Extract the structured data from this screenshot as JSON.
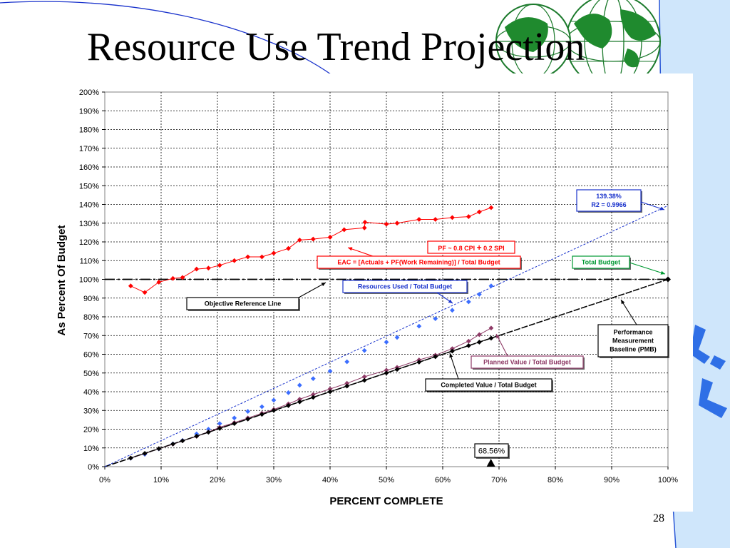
{
  "slide": {
    "title": "Resource Use Trend Projection",
    "page_number": "28",
    "decorations": [
      "globe-icon",
      "curve-line"
    ]
  },
  "colors": {
    "red": "#ff0000",
    "blue": "#3c6eff",
    "purple": "#8e3a66",
    "black": "#000000",
    "green": "#009933",
    "slide_blue": "#cfe6fb",
    "navy": "#1a33cc"
  },
  "chart_data": {
    "type": "scatter",
    "xlabel": "PERCENT COMPLETE",
    "ylabel": "As Percent Of Budget",
    "xlim": [
      0,
      100
    ],
    "ylim": [
      0,
      200
    ],
    "x_ticks": [
      0,
      10,
      20,
      30,
      40,
      50,
      60,
      70,
      80,
      90,
      100
    ],
    "y_ticks": [
      0,
      10,
      20,
      30,
      40,
      50,
      60,
      70,
      80,
      90,
      100,
      110,
      120,
      130,
      140,
      150,
      160,
      170,
      180,
      190,
      200
    ],
    "x_tick_labels": [
      "0%",
      "10%",
      "20%",
      "30%",
      "40%",
      "50%",
      "60%",
      "70%",
      "80%",
      "90%",
      "100%"
    ],
    "y_tick_labels": [
      "0%",
      "10%",
      "20%",
      "30%",
      "40%",
      "50%",
      "60%",
      "70%",
      "80%",
      "90%",
      "100%",
      "110%",
      "120%",
      "130%",
      "140%",
      "150%",
      "160%",
      "170%",
      "180%",
      "190%",
      "200%"
    ],
    "grid": true,
    "series": [
      {
        "key": "eac",
        "color": "#ff0000",
        "x": [
          4.6,
          7.1,
          9.6,
          12.1,
          13.8,
          16.3,
          18.4,
          20.4,
          23.0,
          25.4,
          27.9,
          30.0,
          32.6,
          34.6,
          37.0,
          40.0,
          42.5,
          46.1,
          46.2,
          50.0,
          51.9,
          55.8,
          58.7,
          61.7,
          64.6,
          66.5,
          68.6
        ],
        "y": [
          96.5,
          93,
          98.5,
          100.5,
          101,
          105.5,
          106,
          107.5,
          110,
          112,
          112,
          114,
          116.5,
          121,
          121.5,
          122.5,
          126.5,
          127.5,
          130.5,
          129.5,
          130,
          132,
          132,
          133,
          133.5,
          136,
          138.3
        ]
      },
      {
        "key": "resources",
        "color": "#3c6eff",
        "x": [
          4.6,
          7.1,
          9.6,
          12.1,
          13.8,
          16.3,
          18.4,
          20.4,
          23.0,
          25.4,
          27.9,
          30.0,
          32.6,
          34.6,
          37.0,
          40.0,
          43.0,
          46.1,
          50.0,
          51.9,
          55.8,
          58.7,
          61.7,
          64.6,
          66.5,
          68.6
        ],
        "y": [
          4.5,
          6.6,
          9.5,
          12.2,
          14,
          17.5,
          20,
          23,
          26,
          29.5,
          32,
          35.5,
          39.5,
          43.5,
          47,
          51,
          56,
          62,
          66.5,
          69,
          75,
          79,
          83.5,
          88,
          92,
          96.5
        ]
      },
      {
        "key": "planned",
        "color": "#8e3a66",
        "x": [
          4.6,
          7.1,
          9.6,
          12.1,
          13.8,
          16.3,
          18.4,
          20.4,
          23.0,
          25.4,
          27.9,
          30.0,
          32.6,
          34.6,
          37.0,
          40.0,
          43.0,
          46.1,
          50.0,
          51.9,
          55.8,
          58.7,
          61.7,
          64.6,
          66.5,
          68.6
        ],
        "y": [
          4.6,
          7,
          9.6,
          12,
          13.8,
          16.2,
          18.5,
          21,
          23.5,
          26,
          28.5,
          30.5,
          33.5,
          36,
          38.5,
          41.5,
          44.5,
          48,
          51.5,
          53,
          57,
          59.5,
          63,
          67,
          70.5,
          74
        ]
      },
      {
        "key": "completed",
        "color": "#000000",
        "x": [
          4.6,
          7.1,
          9.6,
          12.1,
          13.8,
          16.3,
          18.4,
          20.4,
          23.0,
          25.4,
          27.9,
          30.0,
          32.6,
          34.6,
          37.0,
          40.0,
          43.0,
          46.1,
          50.0,
          51.9,
          55.8,
          58.7,
          61.7,
          64.6,
          66.5,
          68.6
        ],
        "y": [
          4.6,
          7.1,
          9.6,
          12.1,
          13.8,
          16.3,
          18.4,
          20.4,
          23,
          25.4,
          27.9,
          30,
          32.6,
          34.6,
          37,
          40,
          43,
          46.1,
          50,
          51.9,
          55.8,
          58.7,
          61.7,
          64.6,
          66.5,
          68.6
        ]
      }
    ],
    "reference_lines": {
      "objective_y": 100,
      "pmb": {
        "x": [
          0,
          100
        ],
        "y": [
          0,
          100
        ]
      },
      "resources_trend": {
        "x": [
          0,
          100
        ],
        "y": [
          0,
          139.38
        ]
      },
      "total_budget_point": {
        "x": 100,
        "y": 100
      },
      "current_complete_x": 68.56
    },
    "annotations": {
      "eac_text": "EAC = [Actuals + PF(Work Remaining)] / Total Budget",
      "pf_text_a": "PF ~ 0.8 CPI ",
      "pf_plus": "+",
      "pf_text_b": " 0.2 SPI",
      "trend_value": "139.38%",
      "trend_r2": "R2 = 0.9966",
      "total_budget": "Total Budget",
      "resources_used": "Resources Used / Total Budget",
      "objective_line": "Objective Reference Line",
      "pmb_line1": "Performance",
      "pmb_line2": "Measurement",
      "pmb_line3": "Baseline (PMB)",
      "planned_value": "Planned Value / Total Budget",
      "completed_value": "Completed Value / Total Budget",
      "percent_complete_marker": "68.56%"
    }
  }
}
